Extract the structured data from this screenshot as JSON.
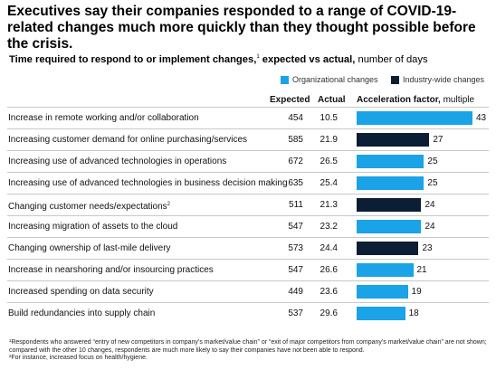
{
  "title": "Executives say their companies responded to a range of COVID-19-related changes much more quickly than they thought possible before the crisis.",
  "subtitle": {
    "bold": "Time required to respond to or implement changes,",
    "sup": "1",
    "bold2": " expected vs actual,",
    "normal": " number of days"
  },
  "legend": [
    {
      "label": "Organizational changes",
      "color": "#1aa3e6"
    },
    {
      "label": "Industry-wide changes",
      "color": "#0b1e33"
    }
  ],
  "columns": {
    "expected": "Expected",
    "actual": "Actual",
    "accel_bold": "Acceleration factor,",
    "accel_normal": " multiple"
  },
  "chart_data": {
    "type": "table",
    "title": "Time required to respond to or implement changes, expected vs actual, number of days",
    "series_names": [
      "Organizational changes",
      "Industry-wide changes"
    ],
    "rows": [
      {
        "label": "Increase in remote working and/or collaboration",
        "sup": "",
        "expected": "454",
        "actual": "10.5",
        "acceleration": 43,
        "category": "Organizational changes"
      },
      {
        "label": "Increasing customer demand for online purchasing/services",
        "sup": "",
        "expected": "585",
        "actual": "21.9",
        "acceleration": 27,
        "category": "Industry-wide changes"
      },
      {
        "label": "Increasing use of advanced technologies in operations",
        "sup": "",
        "expected": "672",
        "actual": "26.5",
        "acceleration": 25,
        "category": "Organizational changes"
      },
      {
        "label": "Increasing use of advanced technologies in business decision making",
        "sup": "",
        "expected": "635",
        "actual": "25.4",
        "acceleration": 25,
        "category": "Organizational changes"
      },
      {
        "label": "Changing customer needs/expectations",
        "sup": "2",
        "expected": "511",
        "actual": "21.3",
        "acceleration": 24,
        "category": "Industry-wide changes"
      },
      {
        "label": "Increasing migration of assets to the cloud",
        "sup": "",
        "expected": "547",
        "actual": "23.2",
        "acceleration": 24,
        "category": "Organizational changes"
      },
      {
        "label": "Changing ownership of last-mile delivery",
        "sup": "",
        "expected": "573",
        "actual": "24.4",
        "acceleration": 23,
        "category": "Industry-wide changes"
      },
      {
        "label": "Increase in nearshoring and/or insourcing practices",
        "sup": "",
        "expected": "547",
        "actual": "26.6",
        "acceleration": 21,
        "category": "Organizational changes"
      },
      {
        "label": "Increased spending on data security",
        "sup": "",
        "expected": "449",
        "actual": "23.6",
        "acceleration": 19,
        "category": "Organizational changes"
      },
      {
        "label": "Build redundancies into supply chain",
        "sup": "",
        "expected": "537",
        "actual": "29.6",
        "acceleration": 18,
        "category": "Organizational changes"
      }
    ],
    "xlim": [
      0,
      43
    ]
  },
  "footnotes": [
    "¹Respondents who answered “entry of new competitors in company’s market/value chain” or “exit of major competitors from company’s market/value chain” are not shown; compared with the other 10 changes, respondents are much more likely to say their companies have not been able to respond.",
    "²For instance, increased focus on health/hygiene."
  ]
}
